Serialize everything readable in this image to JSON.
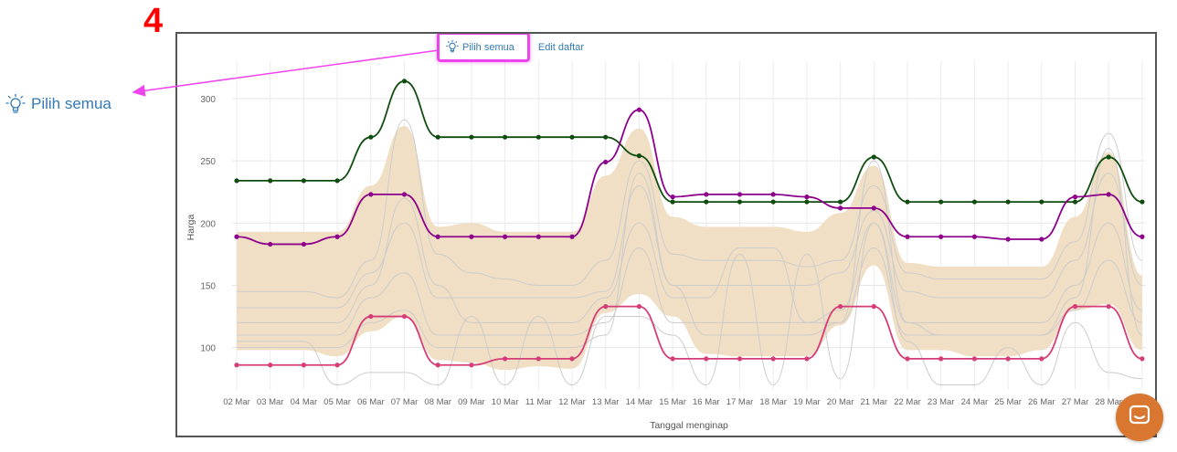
{
  "annotation": {
    "step_number": "4",
    "zoom_label": "Pilih semua",
    "arrow_color": "#ee44ee"
  },
  "toolbar": {
    "select_all_label": "Pilih semua",
    "edit_list_label": "Edit daftar",
    "select_all_icon": "lightbulb-icon"
  },
  "chat": {
    "icon": "chat-icon",
    "color": "#d9762f"
  },
  "chart_data": {
    "type": "line",
    "xlabel": "Tanggal menginap",
    "ylabel": "Harga",
    "categories": [
      "02 Mar",
      "03 Mar",
      "04 Mar",
      "05 Mar",
      "06 Mar",
      "07 Mar",
      "08 Mar",
      "09 Mar",
      "10 Mar",
      "11 Mar",
      "12 Mar",
      "13 Mar",
      "14 Mar",
      "15 Mar",
      "16 Mar",
      "17 Mar",
      "18 Mar",
      "19 Mar",
      "20 Mar",
      "21 Mar",
      "22 Mar",
      "23 Mar",
      "24 Mar",
      "25 Mar",
      "26 Mar",
      "27 Mar",
      "28 Mar",
      "29 Mar"
    ],
    "yticks": [
      100,
      150,
      200,
      250,
      300
    ],
    "ylim": [
      66,
      330
    ],
    "grid": true,
    "band": {
      "color": "#f0dfc4",
      "upper": [
        193,
        193,
        193,
        193,
        230,
        278,
        197,
        200,
        193,
        193,
        193,
        238,
        276,
        205,
        197,
        197,
        197,
        193,
        208,
        246,
        168,
        165,
        165,
        165,
        165,
        205,
        257,
        158
      ],
      "lower": [
        98,
        98,
        98,
        93,
        113,
        125,
        90,
        88,
        82,
        85,
        83,
        128,
        143,
        125,
        95,
        93,
        93,
        93,
        118,
        166,
        98,
        98,
        93,
        93,
        98,
        130,
        135,
        98
      ]
    },
    "series": [
      {
        "color": "#0f4d0f",
        "values": [
          234,
          234,
          234,
          234,
          269,
          314,
          269,
          269,
          269,
          269,
          269,
          269,
          254,
          217,
          217,
          217,
          217,
          217,
          217,
          253,
          217,
          217,
          217,
          217,
          217,
          217,
          253,
          217
        ]
      },
      {
        "color": "#8c008c",
        "values": [
          189,
          183,
          183,
          189,
          223,
          223,
          189,
          189,
          189,
          189,
          189,
          249,
          291,
          221,
          223,
          223,
          223,
          221,
          212,
          212,
          189,
          189,
          189,
          187,
          187,
          221,
          223,
          189
        ]
      },
      {
        "color": "#d63c78",
        "values": [
          86,
          86,
          86,
          86,
          125,
          125,
          86,
          86,
          91,
          91,
          91,
          133,
          133,
          91,
          91,
          91,
          91,
          91,
          133,
          133,
          91,
          91,
          91,
          91,
          91,
          133,
          133,
          91
        ]
      }
    ],
    "gray_lines": {
      "color": "#cccccc",
      "lines": [
        [
          145,
          145,
          145,
          140,
          170,
          283,
          175,
          160,
          155,
          150,
          150,
          170,
          250,
          175,
          170,
          170,
          170,
          165,
          170,
          230,
          160,
          155,
          155,
          155,
          155,
          185,
          272,
          170
        ],
        [
          132,
          132,
          132,
          132,
          160,
          200,
          140,
          140,
          140,
          140,
          140,
          145,
          230,
          150,
          150,
          150,
          150,
          150,
          160,
          210,
          145,
          140,
          140,
          140,
          140,
          170,
          240,
          150
        ],
        [
          120,
          120,
          120,
          120,
          150,
          220,
          150,
          120,
          120,
          120,
          120,
          140,
          200,
          140,
          140,
          180,
          180,
          120,
          130,
          200,
          120,
          120,
          120,
          120,
          120,
          150,
          200,
          130
        ],
        [
          110,
          110,
          110,
          110,
          140,
          160,
          110,
          110,
          110,
          110,
          110,
          120,
          180,
          120,
          120,
          120,
          120,
          120,
          120,
          180,
          110,
          110,
          110,
          110,
          110,
          130,
          170,
          120
        ],
        [
          105,
          105,
          105,
          70,
          80,
          80,
          70,
          125,
          70,
          125,
          70,
          125,
          125,
          110,
          70,
          175,
          70,
          175,
          75,
          200,
          105,
          70,
          70,
          100,
          70,
          120,
          80,
          75
        ],
        [
          100,
          100,
          100,
          100,
          120,
          130,
          100,
          100,
          100,
          100,
          100,
          110,
          240,
          150,
          110,
          110,
          110,
          110,
          120,
          250,
          120,
          110,
          110,
          110,
          110,
          140,
          260,
          110
        ]
      ]
    }
  }
}
